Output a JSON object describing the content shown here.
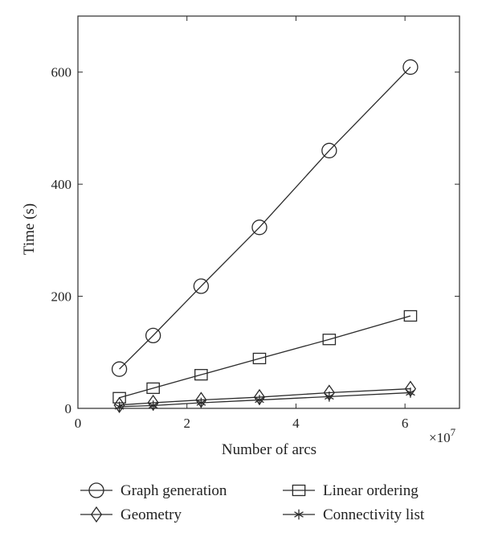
{
  "chart_data": {
    "type": "line",
    "title": "",
    "xlabel": "Number of arcs",
    "ylabel": "Time (s)",
    "x_scale_note": "×10",
    "x_scale_exponent": "7",
    "xlim": [
      0,
      7
    ],
    "ylim": [
      0,
      700
    ],
    "xticks": [
      0,
      2,
      4,
      6
    ],
    "yticks": [
      0,
      200,
      400,
      600
    ],
    "grid": false,
    "legend_placement": "bottom",
    "x": [
      0.76,
      1.38,
      2.26,
      3.33,
      4.61,
      6.1
    ],
    "series": [
      {
        "name": "Graph generation",
        "marker": "circle",
        "values": [
          70,
          130,
          218,
          323,
          460,
          609
        ]
      },
      {
        "name": "Linear ordering",
        "marker": "square",
        "values": [
          19,
          36,
          60,
          89,
          123,
          165
        ]
      },
      {
        "name": "Geometry",
        "marker": "diamond",
        "values": [
          6,
          10,
          15,
          20,
          28,
          35
        ]
      },
      {
        "name": "Connectivity list",
        "marker": "asterisk",
        "values": [
          3,
          5,
          10,
          15,
          21,
          28
        ]
      }
    ]
  }
}
